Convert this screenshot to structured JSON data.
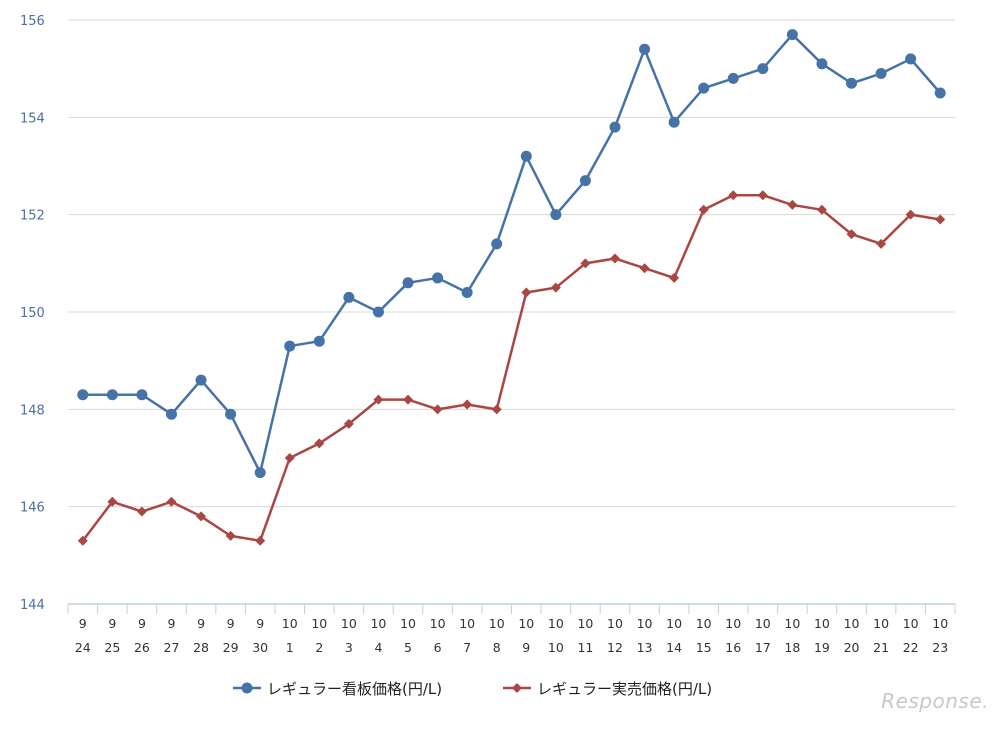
{
  "watermark": "Response.",
  "chart_data": {
    "type": "line",
    "title": "",
    "xlabel": "",
    "ylabel": "",
    "ylim": [
      144,
      156
    ],
    "yticks": [
      144,
      146,
      148,
      150,
      152,
      154,
      156
    ],
    "grid": true,
    "legend_position": "bottom",
    "categories": [
      {
        "month": "9",
        "day": "24"
      },
      {
        "month": "9",
        "day": "25"
      },
      {
        "month": "9",
        "day": "26"
      },
      {
        "month": "9",
        "day": "27"
      },
      {
        "month": "9",
        "day": "28"
      },
      {
        "month": "9",
        "day": "29"
      },
      {
        "month": "9",
        "day": "30"
      },
      {
        "month": "10",
        "day": "1"
      },
      {
        "month": "10",
        "day": "2"
      },
      {
        "month": "10",
        "day": "3"
      },
      {
        "month": "10",
        "day": "4"
      },
      {
        "month": "10",
        "day": "5"
      },
      {
        "month": "10",
        "day": "6"
      },
      {
        "month": "10",
        "day": "7"
      },
      {
        "month": "10",
        "day": "8"
      },
      {
        "month": "10",
        "day": "9"
      },
      {
        "month": "10",
        "day": "10"
      },
      {
        "month": "10",
        "day": "11"
      },
      {
        "month": "10",
        "day": "12"
      },
      {
        "month": "10",
        "day": "13"
      },
      {
        "month": "10",
        "day": "14"
      },
      {
        "month": "10",
        "day": "15"
      },
      {
        "month": "10",
        "day": "16"
      },
      {
        "month": "10",
        "day": "17"
      },
      {
        "month": "10",
        "day": "18"
      },
      {
        "month": "10",
        "day": "19"
      },
      {
        "month": "10",
        "day": "20"
      },
      {
        "month": "10",
        "day": "21"
      },
      {
        "month": "10",
        "day": "22"
      },
      {
        "month": "10",
        "day": "23"
      }
    ],
    "series": [
      {
        "name": "レギュラー看板価格(円/L)",
        "color": "#4572a7",
        "marker": "circle",
        "values": [
          148.3,
          148.3,
          148.3,
          147.9,
          148.6,
          147.9,
          146.7,
          149.3,
          149.4,
          150.3,
          150.0,
          150.6,
          150.7,
          150.4,
          151.4,
          153.2,
          152.0,
          152.7,
          153.8,
          155.4,
          153.9,
          154.6,
          154.8,
          155.0,
          155.7,
          155.1,
          154.7,
          154.9,
          155.2,
          154.5
        ]
      },
      {
        "name": "レギュラー実売価格(円/L)",
        "color": "#aa4643",
        "marker": "diamond",
        "values": [
          145.3,
          146.1,
          145.9,
          146.1,
          145.8,
          145.4,
          145.3,
          147.0,
          147.3,
          147.7,
          148.2,
          148.2,
          148.0,
          148.1,
          148.0,
          150.4,
          150.5,
          151.0,
          151.1,
          150.9,
          150.7,
          152.1,
          152.4,
          152.4,
          152.2,
          152.1,
          151.6,
          151.4,
          152.0,
          151.9
        ]
      }
    ],
    "colors": {
      "grid": "#d8d8d8",
      "axis": "#c0d0e0",
      "ytick_text": "#4d6fa0",
      "xtick_text": "#333333"
    }
  }
}
